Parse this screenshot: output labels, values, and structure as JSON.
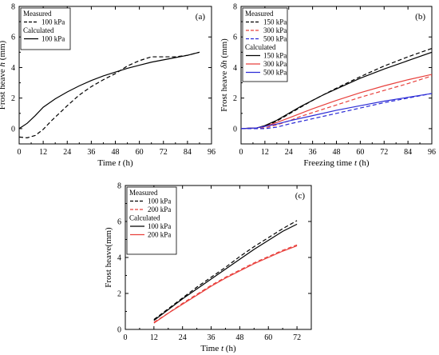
{
  "chart_data": [
    {
      "id": "a",
      "type": "line",
      "panel_label": "(a)",
      "xlabel_main": "Time ",
      "xlabel_var": "t",
      "xlabel_unit": " (h)",
      "ylabel_main": "Frost heave ",
      "ylabel_var": "h",
      "ylabel_unit": " (mm)",
      "xlim": [
        0,
        96
      ],
      "ylim": [
        -1,
        8
      ],
      "xticks": [
        0,
        12,
        24,
        36,
        48,
        60,
        72,
        84,
        96
      ],
      "yticks": [
        0,
        2,
        4,
        6,
        8
      ],
      "legend_position": "top-left",
      "legend": {
        "heading_measured": "Measured",
        "heading_calculated": "Calculated",
        "entries": [
          {
            "group": "measured",
            "label": "100 kPa",
            "color": "#000000",
            "dash": "dashed"
          },
          {
            "group": "calculated",
            "label": "100 kPa",
            "color": "#000000",
            "dash": "solid"
          }
        ]
      },
      "series": [
        {
          "name": "Measured 100 kPa",
          "color": "#000000",
          "dash": "dashed",
          "x": [
            0,
            4,
            8,
            12,
            16,
            20,
            24,
            30,
            36,
            42,
            48,
            54,
            60,
            66,
            72,
            78,
            84,
            90
          ],
          "y": [
            -0.55,
            -0.6,
            -0.45,
            -0.05,
            0.5,
            1.0,
            1.5,
            2.2,
            2.75,
            3.2,
            3.6,
            4.1,
            4.45,
            4.7,
            4.7,
            4.7,
            4.8,
            5.0
          ]
        },
        {
          "name": "Calculated 100 kPa",
          "color": "#000000",
          "dash": "solid",
          "x": [
            0,
            4,
            8,
            12,
            18,
            24,
            30,
            36,
            42,
            48,
            54,
            60,
            66,
            72,
            78,
            84,
            90
          ],
          "y": [
            0.0,
            0.35,
            0.85,
            1.4,
            1.95,
            2.4,
            2.8,
            3.15,
            3.45,
            3.7,
            3.95,
            4.15,
            4.35,
            4.5,
            4.65,
            4.8,
            5.0
          ]
        }
      ]
    },
    {
      "id": "b",
      "type": "line",
      "panel_label": "(b)",
      "xlabel_main": "Freezing time ",
      "xlabel_var": "t",
      "xlabel_unit": " (h)",
      "ylabel_main": "Frost heave ",
      "ylabel_var": "δh",
      "ylabel_unit": " (mm)",
      "xlim": [
        0,
        96
      ],
      "ylim": [
        -1,
        8
      ],
      "xticks": [
        0,
        12,
        24,
        36,
        48,
        60,
        72,
        84,
        96
      ],
      "yticks": [
        0,
        2,
        4,
        6,
        8
      ],
      "legend_position": "top-left",
      "legend": {
        "heading_measured": "Measured",
        "heading_calculated": "Calculated",
        "entries": [
          {
            "group": "measured",
            "label": "150 kPa",
            "color": "#000000",
            "dash": "dashed"
          },
          {
            "group": "measured",
            "label": "300 kPa",
            "color": "#e8403c",
            "dash": "dashed"
          },
          {
            "group": "measured",
            "label": "500 kPa",
            "color": "#2b2bd6",
            "dash": "dashed"
          },
          {
            "group": "calculated",
            "label": "150 kPa",
            "color": "#000000",
            "dash": "solid"
          },
          {
            "group": "calculated",
            "label": "300 kPa",
            "color": "#e8403c",
            "dash": "solid"
          },
          {
            "group": "calculated",
            "label": "500 kPa",
            "color": "#2b2bd6",
            "dash": "solid"
          }
        ]
      },
      "series": [
        {
          "name": "Measured 150 kPa",
          "color": "#000000",
          "dash": "dashed",
          "x": [
            0,
            8,
            12,
            18,
            24,
            30,
            36,
            42,
            48,
            60,
            72,
            84,
            96
          ],
          "y": [
            0.0,
            0.05,
            0.15,
            0.5,
            0.95,
            1.4,
            1.85,
            2.25,
            2.65,
            3.4,
            4.1,
            4.7,
            5.25
          ]
        },
        {
          "name": "Calculated 150 kPa",
          "color": "#000000",
          "dash": "solid",
          "x": [
            0,
            8,
            12,
            18,
            24,
            30,
            36,
            42,
            48,
            60,
            72,
            84,
            96
          ],
          "y": [
            0.0,
            0.05,
            0.2,
            0.55,
            1.0,
            1.45,
            1.85,
            2.25,
            2.6,
            3.3,
            3.9,
            4.45,
            5.0
          ]
        },
        {
          "name": "Measured 300 kPa",
          "color": "#e8403c",
          "dash": "dashed",
          "x": [
            0,
            8,
            12,
            18,
            24,
            30,
            36,
            48,
            60,
            72,
            84,
            96
          ],
          "y": [
            0.0,
            0.0,
            0.05,
            0.25,
            0.5,
            0.8,
            1.05,
            1.55,
            2.05,
            2.5,
            2.95,
            3.45
          ]
        },
        {
          "name": "Calculated 300 kPa",
          "color": "#e8403c",
          "dash": "solid",
          "x": [
            0,
            8,
            12,
            18,
            24,
            30,
            36,
            48,
            60,
            72,
            84,
            96
          ],
          "y": [
            0.0,
            0.05,
            0.15,
            0.4,
            0.7,
            1.0,
            1.3,
            1.85,
            2.35,
            2.8,
            3.2,
            3.55
          ]
        },
        {
          "name": "Measured 500 kPa",
          "color": "#2b2bd6",
          "dash": "dashed",
          "x": [
            0,
            8,
            12,
            18,
            24,
            36,
            48,
            60,
            72,
            84,
            96
          ],
          "y": [
            0.0,
            0.0,
            0.0,
            0.1,
            0.3,
            0.65,
            1.0,
            1.35,
            1.7,
            2.0,
            2.3
          ]
        },
        {
          "name": "Calculated 500 kPa",
          "color": "#2b2bd6",
          "dash": "solid",
          "x": [
            0,
            8,
            12,
            18,
            24,
            36,
            48,
            60,
            72,
            84,
            96
          ],
          "y": [
            0.0,
            0.05,
            0.15,
            0.3,
            0.5,
            0.85,
            1.2,
            1.5,
            1.8,
            2.05,
            2.3
          ]
        }
      ]
    },
    {
      "id": "c",
      "type": "line",
      "panel_label": "(c)",
      "xlabel_main": "Time ",
      "xlabel_var": "t",
      "xlabel_unit": " (h)",
      "ylabel_main": "Frost heave(mm)",
      "ylabel_var": "",
      "ylabel_unit": "",
      "xlim": [
        0,
        78
      ],
      "ylim": [
        0,
        8
      ],
      "xticks": [
        0,
        12,
        24,
        36,
        48,
        60,
        72
      ],
      "yticks": [
        0,
        2,
        4,
        6,
        8
      ],
      "legend_position": "top-left",
      "legend": {
        "heading_measured": "Measured",
        "heading_calculated": "Calculated",
        "entries": [
          {
            "group": "measured",
            "label": "100 kPa",
            "color": "#000000",
            "dash": "dashed"
          },
          {
            "group": "measured",
            "label": "200 kPa",
            "color": "#e8403c",
            "dash": "dashed"
          },
          {
            "group": "calculated",
            "label": "100 kPa",
            "color": "#000000",
            "dash": "solid"
          },
          {
            "group": "calculated",
            "label": "200 kPa",
            "color": "#e8403c",
            "dash": "solid"
          }
        ]
      },
      "series": [
        {
          "name": "Measured 100 kPa",
          "color": "#000000",
          "dash": "dashed",
          "x": [
            12,
            18,
            24,
            30,
            36,
            42,
            48,
            54,
            60,
            66,
            72
          ],
          "y": [
            0.55,
            1.15,
            1.75,
            2.35,
            2.9,
            3.45,
            4.05,
            4.6,
            5.1,
            5.6,
            6.05
          ]
        },
        {
          "name": "Calculated 100 kPa",
          "color": "#000000",
          "dash": "solid",
          "x": [
            12,
            18,
            24,
            30,
            36,
            42,
            48,
            54,
            60,
            66,
            72
          ],
          "y": [
            0.5,
            1.1,
            1.7,
            2.25,
            2.8,
            3.35,
            3.9,
            4.45,
            4.95,
            5.45,
            5.85
          ]
        },
        {
          "name": "Measured 200 kPa",
          "color": "#e8403c",
          "dash": "dashed",
          "x": [
            12,
            18,
            24,
            30,
            36,
            42,
            48,
            54,
            60,
            66,
            72
          ],
          "y": [
            0.4,
            0.9,
            1.45,
            1.95,
            2.45,
            2.9,
            3.3,
            3.7,
            4.05,
            4.4,
            4.7
          ]
        },
        {
          "name": "Calculated 200 kPa",
          "color": "#e8403c",
          "dash": "solid",
          "x": [
            12,
            18,
            24,
            30,
            36,
            42,
            48,
            54,
            60,
            66,
            72
          ],
          "y": [
            0.35,
            0.9,
            1.4,
            1.9,
            2.4,
            2.85,
            3.25,
            3.65,
            4.0,
            4.35,
            4.65
          ]
        }
      ]
    }
  ]
}
